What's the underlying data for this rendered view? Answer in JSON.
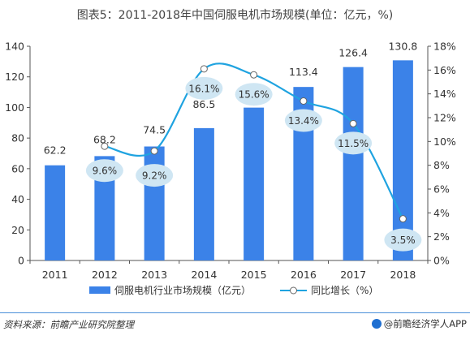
{
  "title": "图表5：2011-2018年中国伺服电机市场规模(单位：亿元，%)",
  "source": "资料来源：前瞻产业研究院整理",
  "brand": "@前瞻经济学人APP",
  "colors": {
    "bar": "#3b82e8",
    "line": "#1fa3e0",
    "bubble": "#cfe6f3"
  },
  "chart_data": {
    "type": "bar",
    "categories": [
      "2011",
      "2012",
      "2013",
      "2014",
      "2015",
      "2016",
      "2017",
      "2018"
    ],
    "series": [
      {
        "name": "伺服电机行业市场规模（亿元）",
        "type": "bar",
        "axis": "left",
        "values": [
          62.2,
          68.2,
          74.5,
          86.5,
          99.9,
          113.4,
          126.4,
          130.8
        ],
        "labels": [
          "62.2",
          "68.2",
          "74.5",
          "86.5",
          "",
          "113.4",
          "126.4",
          "130.8"
        ]
      },
      {
        "name": "同比增长（%）",
        "type": "line",
        "axis": "right",
        "values": [
          null,
          9.6,
          9.2,
          16.1,
          15.6,
          13.4,
          11.5,
          3.5
        ],
        "labels": [
          "",
          "9.6%",
          "9.2%",
          "16.1%",
          "15.6%",
          "13.4%",
          "11.5%",
          "3.5%"
        ]
      }
    ],
    "y_left": {
      "min": 0,
      "max": 140,
      "step": 20,
      "ticks": [
        "0",
        "20",
        "40",
        "60",
        "80",
        "100",
        "120",
        "140"
      ]
    },
    "y_right": {
      "min": 0,
      "max": 18,
      "step": 2,
      "ticks": [
        "0%",
        "2%",
        "4%",
        "6%",
        "8%",
        "10%",
        "12%",
        "14%",
        "16%",
        "18%"
      ]
    },
    "grid": false,
    "legend_position": "bottom"
  }
}
